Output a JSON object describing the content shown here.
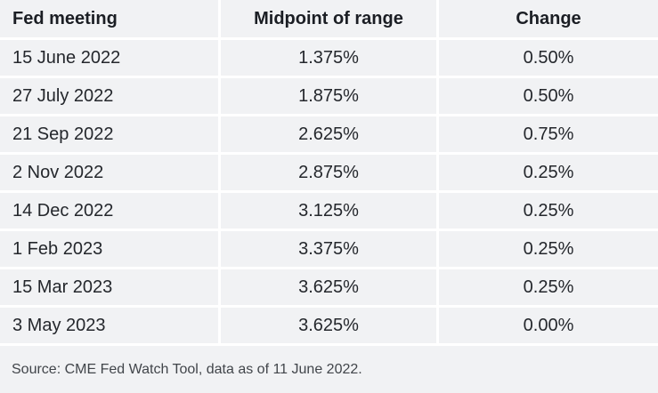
{
  "chart_data": {
    "type": "table",
    "columns": [
      "Fed meeting",
      "Midpoint of range",
      "Change"
    ],
    "rows": [
      [
        "15 June 2022",
        "1.375%",
        "0.50%"
      ],
      [
        "27 July 2022",
        "1.875%",
        "0.50%"
      ],
      [
        "21 Sep 2022",
        "2.625%",
        "0.75%"
      ],
      [
        "2 Nov 2022",
        "2.875%",
        "0.25%"
      ],
      [
        "14 Dec 2022",
        "3.125%",
        "0.25%"
      ],
      [
        "1 Feb 2023",
        "3.375%",
        "0.25%"
      ],
      [
        "15 Mar 2023",
        "3.625%",
        "0.25%"
      ],
      [
        "3 May 2023",
        "3.625%",
        "0.00%"
      ]
    ],
    "source": "Source: CME Fed Watch Tool, data as of 11 June 2022.",
    "layout": {
      "column_alignments": [
        "left",
        "center",
        "center"
      ],
      "grid": "white 3px separators on light-gray cells"
    }
  },
  "colors": {
    "cell_background": "#f1f2f4",
    "grid_line": "#ffffff",
    "header_text": "#1b1e24",
    "cell_text": "#24272c",
    "source_text": "#41454a"
  }
}
